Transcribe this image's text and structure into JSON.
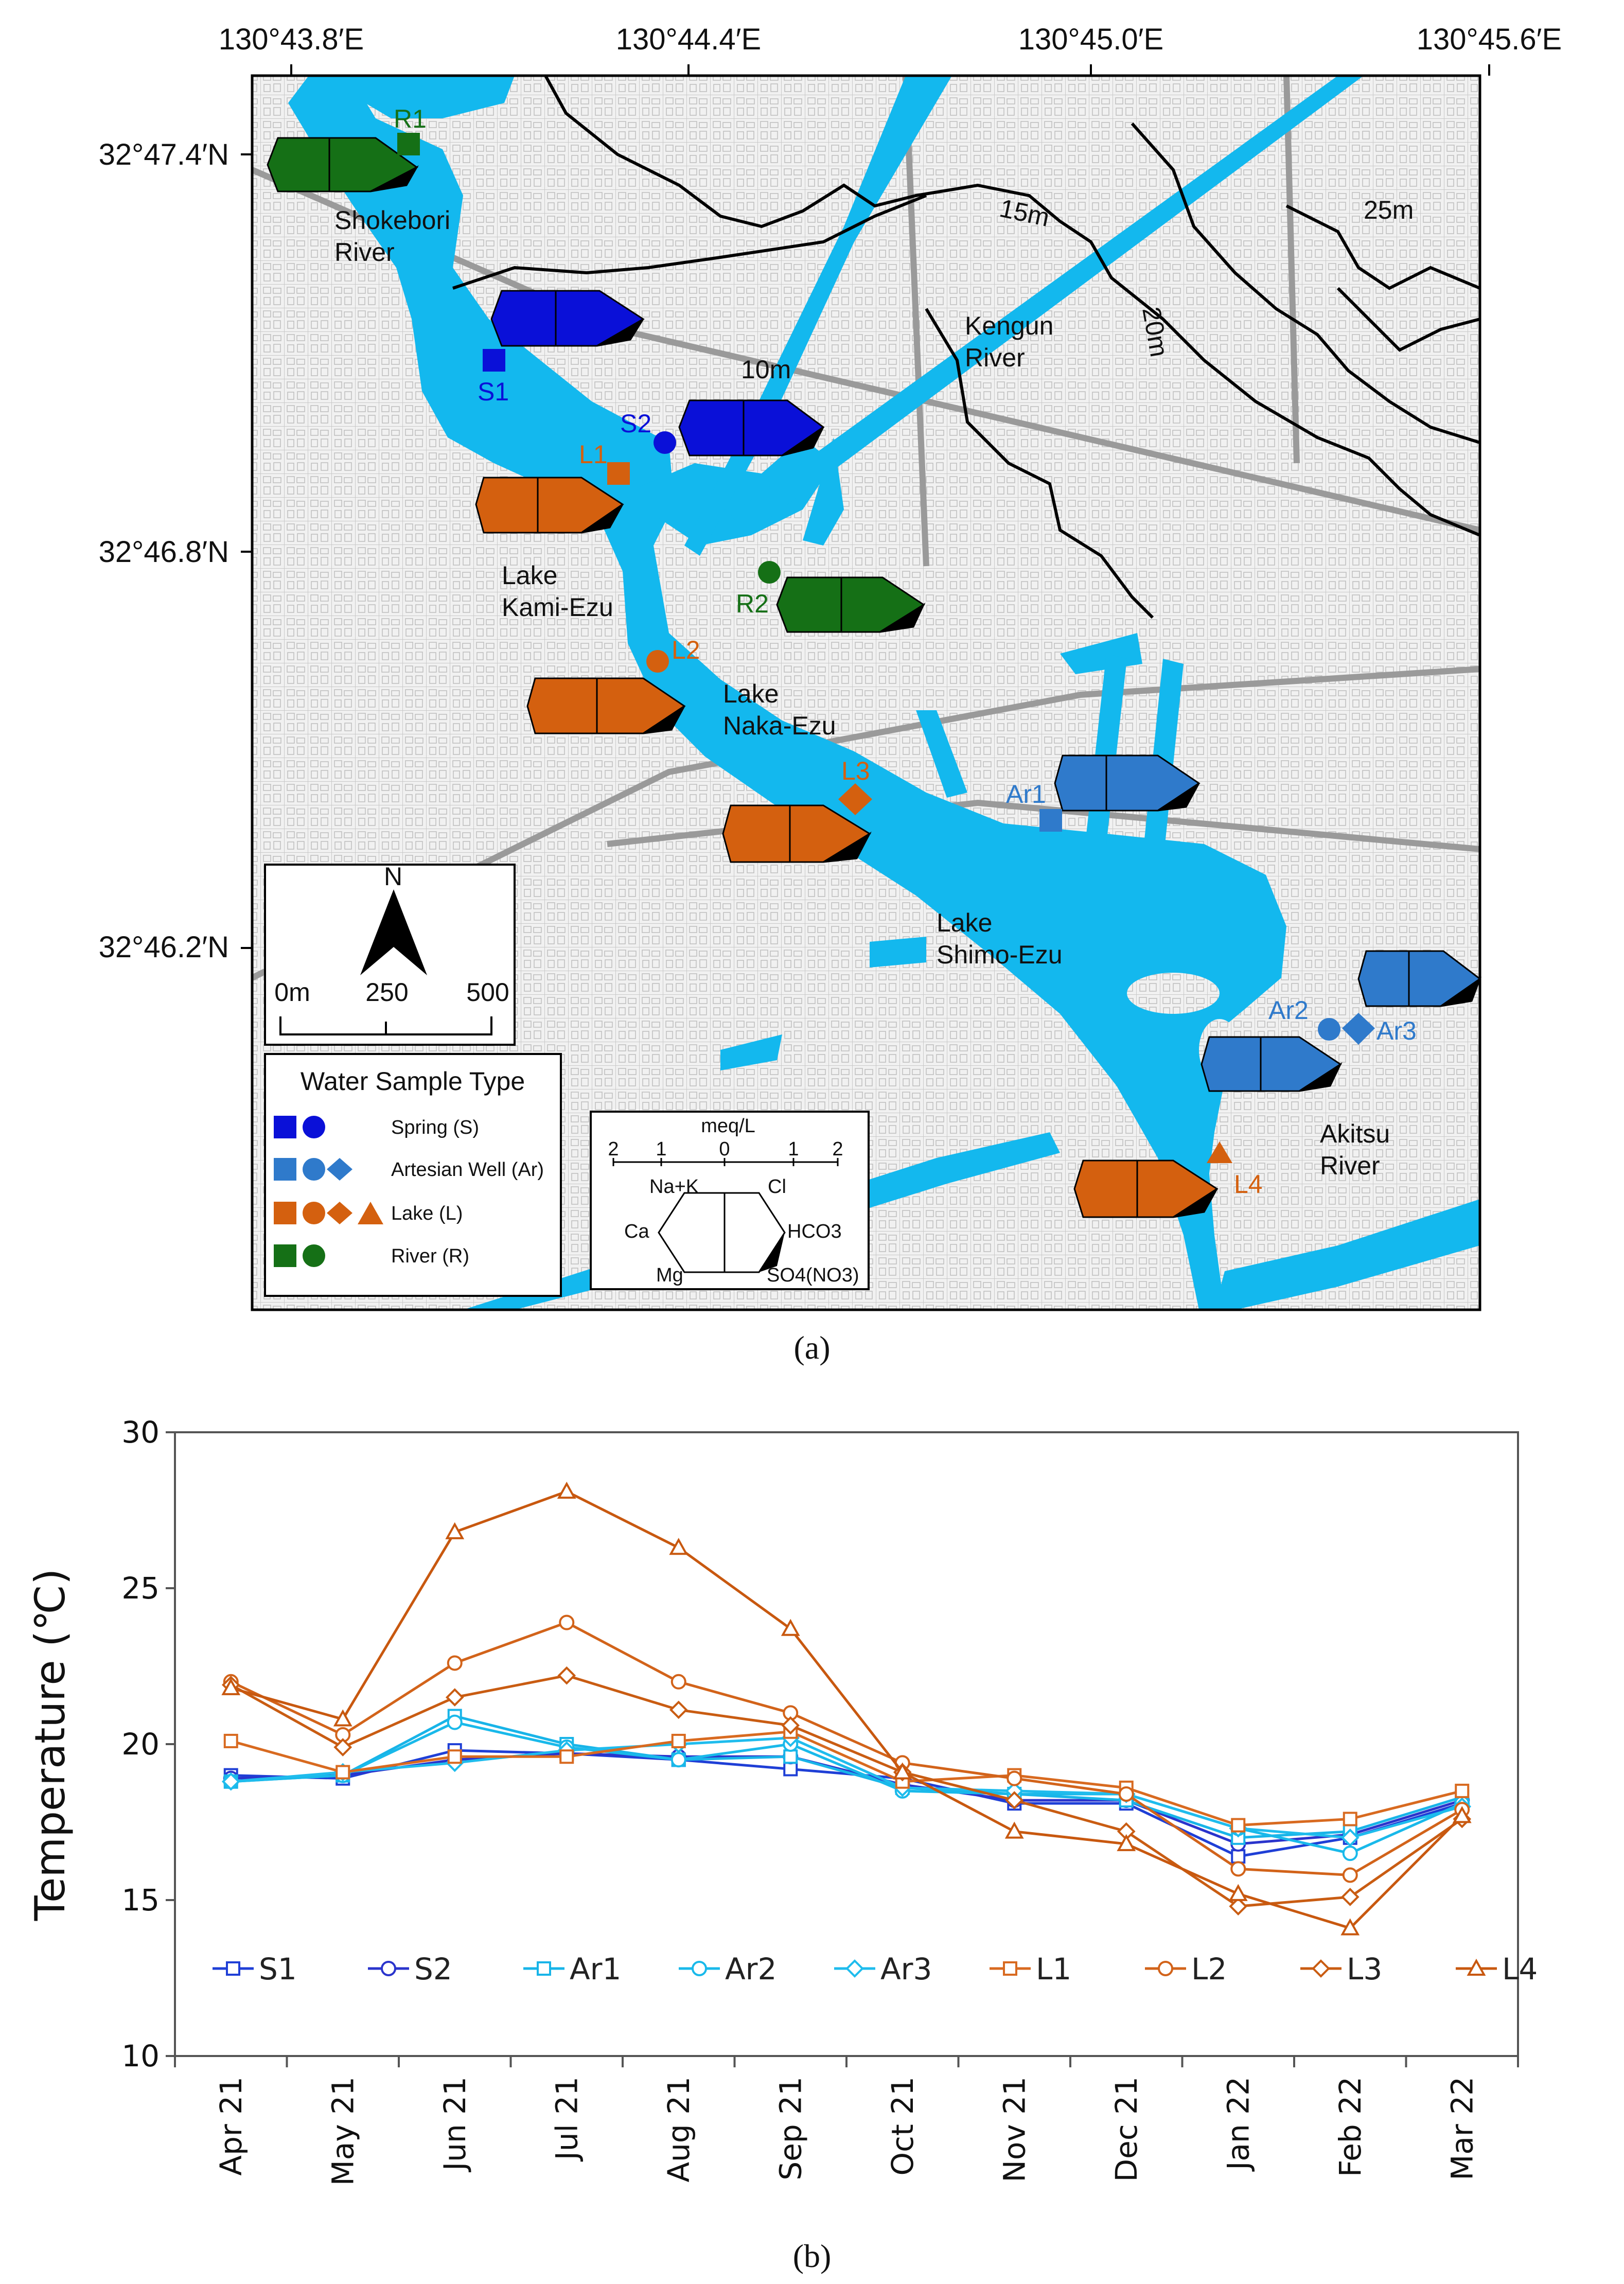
{
  "map": {
    "caption": "(a)",
    "top_ticks": [
      "130°43.8′E",
      "130°44.4′E",
      "130°45.0′E",
      "130°45.6′E"
    ],
    "left_ticks": [
      "32°47.4′N",
      "32°46.8′N",
      "32°46.2′N"
    ],
    "contours": [
      "10m",
      "15m",
      "20m",
      "25m"
    ],
    "rivers": {
      "shokebori": [
        "Shokebori",
        "River"
      ],
      "kengun": [
        "Kengun",
        "River"
      ],
      "akitsu": [
        "Akitsu",
        "River"
      ]
    },
    "lakes": {
      "kami": [
        "Lake",
        "Kami-Ezu"
      ],
      "naka": [
        "Lake",
        "Naka-Ezu"
      ],
      "shimo": [
        "Lake",
        "Shimo-Ezu"
      ]
    },
    "sites": {
      "R1": "R1",
      "S1": "S1",
      "S2": "S2",
      "L1": "L1",
      "R2": "R2",
      "L2": "L2",
      "L3": "L3",
      "Ar1": "Ar1",
      "Ar2": "Ar2",
      "Ar3": "Ar3",
      "L4": "L4"
    },
    "scale": {
      "north": "N",
      "labels": [
        "0m",
        "250",
        "500"
      ]
    },
    "legend": {
      "title": "Water Sample Type",
      "items": [
        "Spring (S)",
        "Artesian Well (Ar)",
        "Lake (L)",
        "River (R)"
      ]
    },
    "stiff_key": {
      "unit": "meq/L",
      "scale": [
        "2",
        "1",
        "0",
        "1",
        "2"
      ],
      "left": [
        "Na+K",
        "Ca",
        "Mg"
      ],
      "right": [
        "Cl",
        "HCO3",
        "SO4(NO3)"
      ]
    },
    "colors": {
      "spring": "#0a10d8",
      "artesian": "#2f7acb",
      "lake": "#d4600f",
      "river": "#157016",
      "water": "#13b8ee"
    }
  },
  "chart_data": {
    "type": "line",
    "caption": "(b)",
    "title": "",
    "xlabel": "",
    "ylabel": "Temperature (℃)",
    "ylim": [
      10,
      30
    ],
    "yticks": [
      10,
      15,
      20,
      25,
      30
    ],
    "legend_position": "bottom",
    "categories": [
      "Apr 21",
      "May 21",
      "Jun 21",
      "Jul 21",
      "Aug 21",
      "Sep 21",
      "Oct 21",
      "Nov 21",
      "Dec 21",
      "Jan 22",
      "Feb 22",
      "Mar 22"
    ],
    "series": [
      {
        "name": "S1",
        "marker": "square",
        "color": "#1f3fd6",
        "values": [
          19.0,
          18.9,
          19.8,
          19.7,
          19.5,
          19.2,
          18.9,
          18.1,
          18.1,
          16.4,
          17.0,
          18.1
        ]
      },
      {
        "name": "S2",
        "marker": "circle",
        "color": "#2a34cc",
        "values": [
          18.9,
          19.0,
          19.5,
          19.7,
          19.6,
          19.6,
          18.7,
          18.2,
          18.2,
          16.8,
          17.1,
          18.2
        ]
      },
      {
        "name": "Ar1",
        "marker": "square",
        "color": "#18b4e8",
        "values": [
          18.8,
          19.0,
          20.9,
          20.0,
          19.5,
          19.6,
          18.6,
          18.4,
          18.2,
          17.0,
          17.2,
          18.3
        ]
      },
      {
        "name": "Ar2",
        "marker": "circle",
        "color": "#19b9ea",
        "values": [
          18.8,
          19.0,
          20.7,
          19.9,
          19.5,
          20.0,
          18.5,
          18.4,
          18.4,
          17.3,
          16.5,
          18.1
        ]
      },
      {
        "name": "Ar3",
        "marker": "diamond",
        "color": "#1fbced",
        "values": [
          18.8,
          19.1,
          19.4,
          19.8,
          20.0,
          20.2,
          18.6,
          18.5,
          18.4,
          17.3,
          17.0,
          18.0
        ]
      },
      {
        "name": "L1",
        "marker": "square",
        "color": "#d86a20",
        "values": [
          20.1,
          19.1,
          19.6,
          19.6,
          20.1,
          20.4,
          18.8,
          19.0,
          18.6,
          17.4,
          17.6,
          18.5
        ]
      },
      {
        "name": "L2",
        "marker": "circle",
        "color": "#d2631a",
        "values": [
          22.0,
          20.3,
          22.6,
          23.9,
          22.0,
          21.0,
          19.4,
          18.9,
          18.4,
          16.0,
          15.8,
          17.9
        ]
      },
      {
        "name": "L3",
        "marker": "diamond",
        "color": "#c95c12",
        "values": [
          21.9,
          19.9,
          21.5,
          22.2,
          21.1,
          20.6,
          19.1,
          18.2,
          17.2,
          14.8,
          15.1,
          17.6
        ]
      },
      {
        "name": "L4",
        "marker": "triangle",
        "color": "#c8580f",
        "values": [
          21.8,
          20.8,
          26.8,
          28.1,
          26.3,
          23.7,
          19.1,
          17.2,
          16.8,
          15.2,
          14.1,
          17.7
        ]
      }
    ]
  }
}
